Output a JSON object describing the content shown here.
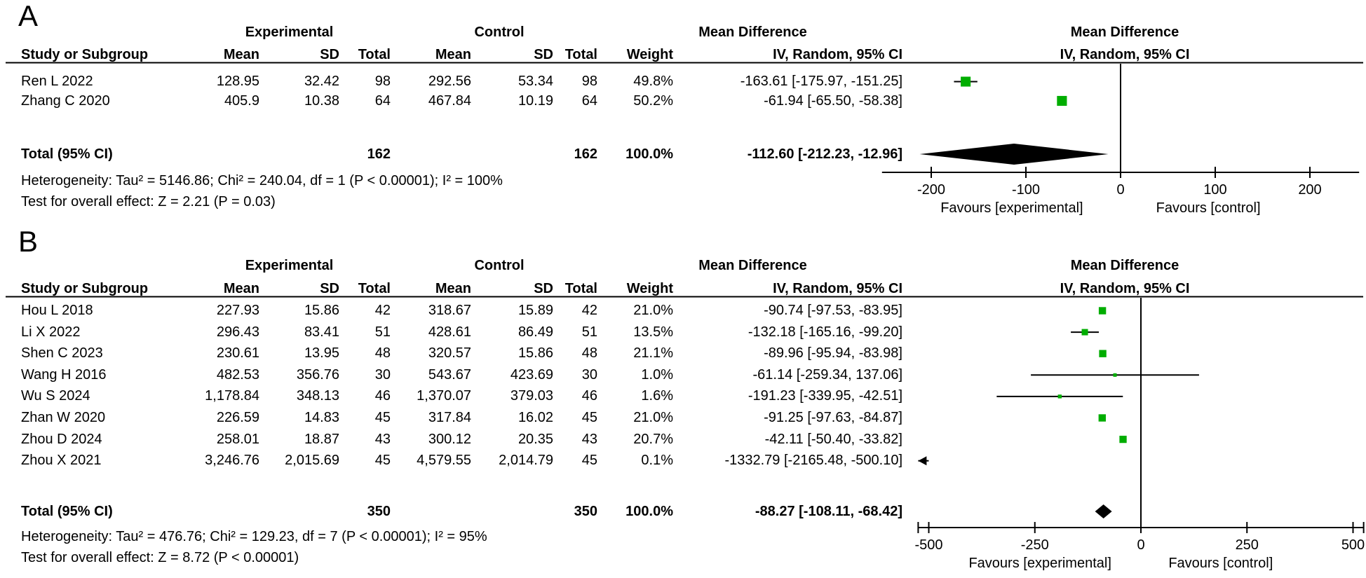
{
  "figure": {
    "background": "#ffffff",
    "text_color": "#000000",
    "marker_green": "#00ad00",
    "diamond_color": "#000000"
  },
  "chart_data": [
    {
      "type": "forest",
      "panel_label": "A",
      "effect_measure": "Mean Difference",
      "model": "IV, Random, 95% CI",
      "table": {
        "group_headers": {
          "experimental": "Experimental",
          "control": "Control",
          "md_text": "Mean Difference",
          "md_plot": "Mean Difference"
        },
        "col_headers": {
          "study": "Study or Subgroup",
          "mean_e": "Mean",
          "sd_e": "SD",
          "total_e": "Total",
          "mean_c": "Mean",
          "sd_c": "SD",
          "total_c": "Total",
          "weight": "Weight",
          "ci_text": "IV, Random, 95% CI",
          "ci_plot": "IV, Random, 95% CI"
        }
      },
      "studies": [
        {
          "study": "Ren L 2022",
          "mean_e": "128.95",
          "sd_e": "32.42",
          "total_e": "98",
          "mean_c": "292.56",
          "sd_c": "53.34",
          "total_c": "98",
          "weight": "49.8%",
          "ci_text": "-163.61 [-175.97, -151.25]",
          "est": -163.61,
          "lo": -175.97,
          "hi": -151.25,
          "weight_pct": 49.8
        },
        {
          "study": "Zhang C 2020",
          "mean_e": "405.9",
          "sd_e": "10.38",
          "total_e": "64",
          "mean_c": "467.84",
          "sd_c": "10.19",
          "total_c": "64",
          "weight": "50.2%",
          "ci_text": "-61.94 [-65.50, -58.38]",
          "est": -61.94,
          "lo": -65.5,
          "hi": -58.38,
          "weight_pct": 50.2
        }
      ],
      "total": {
        "label": "Total (95% CI)",
        "total_e": "162",
        "total_c": "162",
        "weight": "100.0%",
        "ci_text": "-112.60 [-212.23, -12.96]",
        "est": -112.6,
        "lo": -212.23,
        "hi": -12.96
      },
      "heterogeneity": "Heterogeneity: Tau² = 5146.86; Chi² = 240.04, df = 1 (P < 0.00001); I² = 100%",
      "overall_effect": "Test for overall effect: Z = 2.21 (P = 0.03)",
      "axis": {
        "tick_values": [
          -200,
          -100,
          0,
          100,
          200
        ],
        "tick_labels": [
          "-200",
          "-100",
          "0",
          "100",
          "200"
        ],
        "range": [
          -252,
          252
        ],
        "favours_left": "Favours [experimental]",
        "favours_right": "Favours [control]"
      }
    },
    {
      "type": "forest",
      "panel_label": "B",
      "effect_measure": "Mean Difference",
      "model": "IV, Random, 95% CI",
      "table": {
        "group_headers": {
          "experimental": "Experimental",
          "control": "Control",
          "md_text": "Mean Difference",
          "md_plot": "Mean Difference"
        },
        "col_headers": {
          "study": "Study or Subgroup",
          "mean_e": "Mean",
          "sd_e": "SD",
          "total_e": "Total",
          "mean_c": "Mean",
          "sd_c": "SD",
          "total_c": "Total",
          "weight": "Weight",
          "ci_text": "IV, Random, 95% CI",
          "ci_plot": "IV, Random, 95% CI"
        }
      },
      "studies": [
        {
          "study": "Hou L 2018",
          "mean_e": "227.93",
          "sd_e": "15.86",
          "total_e": "42",
          "mean_c": "318.67",
          "sd_c": "15.89",
          "total_c": "42",
          "weight": "21.0%",
          "ci_text": "-90.74 [-97.53, -83.95]",
          "est": -90.74,
          "lo": -97.53,
          "hi": -83.95,
          "weight_pct": 21.0
        },
        {
          "study": "Li X 2022",
          "mean_e": "296.43",
          "sd_e": "83.41",
          "total_e": "51",
          "mean_c": "428.61",
          "sd_c": "86.49",
          "total_c": "51",
          "weight": "13.5%",
          "ci_text": "-132.18 [-165.16, -99.20]",
          "est": -132.18,
          "lo": -165.16,
          "hi": -99.2,
          "weight_pct": 13.5
        },
        {
          "study": "Shen C 2023",
          "mean_e": "230.61",
          "sd_e": "13.95",
          "total_e": "48",
          "mean_c": "320.57",
          "sd_c": "15.86",
          "total_c": "48",
          "weight": "21.1%",
          "ci_text": "-89.96 [-95.94, -83.98]",
          "est": -89.96,
          "lo": -95.94,
          "hi": -83.98,
          "weight_pct": 21.1
        },
        {
          "study": "Wang H 2016",
          "mean_e": "482.53",
          "sd_e": "356.76",
          "total_e": "30",
          "mean_c": "543.67",
          "sd_c": "423.69",
          "total_c": "30",
          "weight": "1.0%",
          "ci_text": "-61.14 [-259.34, 137.06]",
          "est": -61.14,
          "lo": -259.34,
          "hi": 137.06,
          "weight_pct": 1.0
        },
        {
          "study": "Wu S 2024",
          "mean_e": "1,178.84",
          "sd_e": "348.13",
          "total_e": "46",
          "mean_c": "1,370.07",
          "sd_c": "379.03",
          "total_c": "46",
          "weight": "1.6%",
          "ci_text": "-191.23 [-339.95, -42.51]",
          "est": -191.23,
          "lo": -339.95,
          "hi": -42.51,
          "weight_pct": 1.6
        },
        {
          "study": "Zhan W 2020",
          "mean_e": "226.59",
          "sd_e": "14.83",
          "total_e": "45",
          "mean_c": "317.84",
          "sd_c": "16.02",
          "total_c": "45",
          "weight": "21.0%",
          "ci_text": "-91.25 [-97.63, -84.87]",
          "est": -91.25,
          "lo": -97.63,
          "hi": -84.87,
          "weight_pct": 21.0
        },
        {
          "study": "Zhou D 2024",
          "mean_e": "258.01",
          "sd_e": "18.87",
          "total_e": "43",
          "mean_c": "300.12",
          "sd_c": "20.35",
          "total_c": "43",
          "weight": "20.7%",
          "ci_text": "-42.11 [-50.40, -33.82]",
          "est": -42.11,
          "lo": -50.4,
          "hi": -33.82,
          "weight_pct": 20.7
        },
        {
          "study": "Zhou X 2021",
          "mean_e": "3,246.76",
          "sd_e": "2,015.69",
          "total_e": "45",
          "mean_c": "4,579.55",
          "sd_c": "2,014.79",
          "total_c": "45",
          "weight": "0.1%",
          "ci_text": "-1332.79 [-2165.48, -500.10]",
          "est": -1332.79,
          "lo": -2165.48,
          "hi": -500.1,
          "weight_pct": 0.1
        }
      ],
      "total": {
        "label": "Total (95% CI)",
        "total_e": "350",
        "total_c": "350",
        "weight": "100.0%",
        "ci_text": "-88.27 [-108.11, -68.42]",
        "est": -88.27,
        "lo": -108.11,
        "hi": -68.42
      },
      "heterogeneity": "Heterogeneity: Tau² = 476.76; Chi² = 129.23, df = 7 (P < 0.00001); I² = 95%",
      "overall_effect": "Test for overall effect: Z = 8.72 (P < 0.00001)",
      "axis": {
        "tick_values": [
          -500,
          -250,
          0,
          250,
          500
        ],
        "tick_labels": [
          "-500",
          "-250",
          "0",
          "250",
          "500"
        ],
        "range": [
          -525,
          525
        ],
        "favours_left": "Favours [experimental]",
        "favours_right": "Favours [control]"
      }
    }
  ]
}
